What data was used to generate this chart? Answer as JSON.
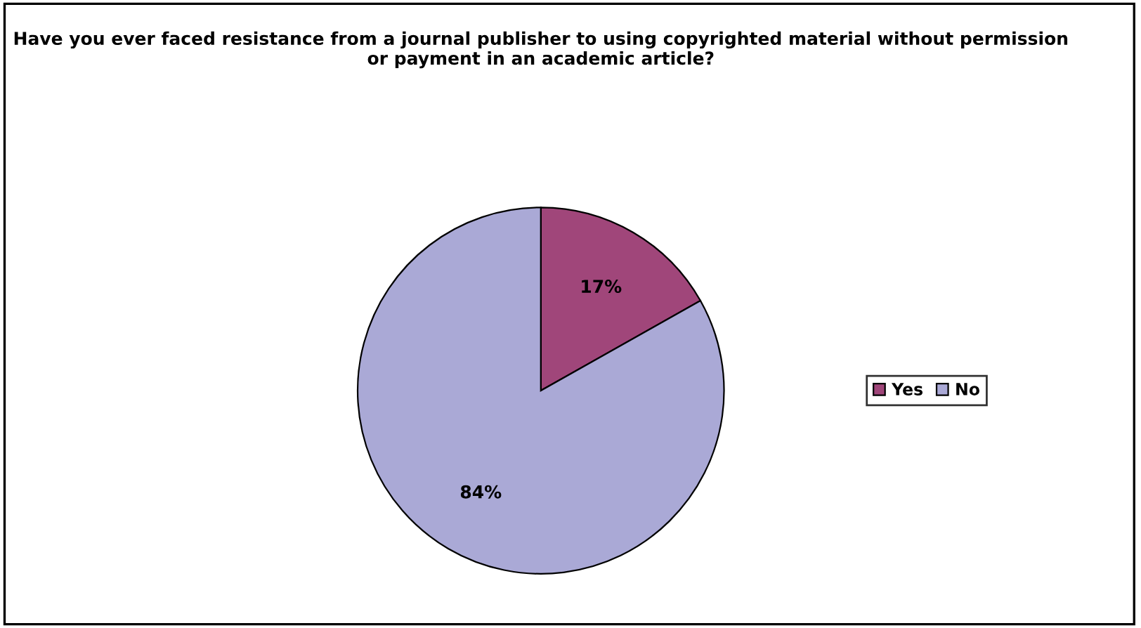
{
  "chart_data": {
    "type": "pie",
    "title": "Have you ever faced resistance from a journal publisher to using copyrighted material without permission or payment in an academic article?",
    "categories": [
      "Yes",
      "No"
    ],
    "values": [
      17,
      84
    ],
    "colors": [
      "#a0467a",
      "#aaa9d6"
    ],
    "value_labels": [
      "17%",
      "84%"
    ],
    "legend": "right"
  }
}
